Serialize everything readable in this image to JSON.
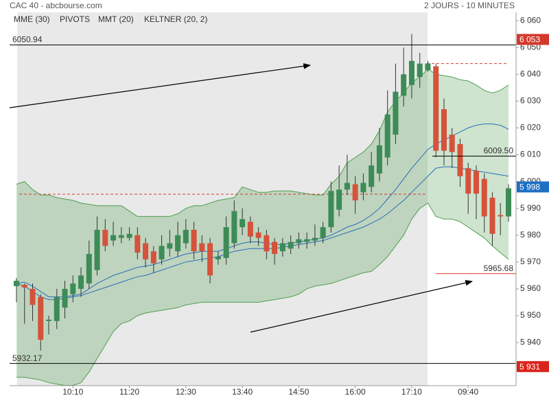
{
  "chart_data": {
    "type": "candlestick",
    "title": "CAC 40 - abcbourse.com",
    "subtitle": "2 JOURS - 10 MINUTES",
    "categories": [
      null,
      null,
      null,
      null,
      null,
      null,
      null,
      "10:10",
      null,
      null,
      null,
      null,
      null,
      null,
      "11:20",
      null,
      null,
      null,
      null,
      null,
      null,
      "12:30",
      null,
      null,
      null,
      null,
      null,
      null,
      "13:40",
      null,
      null,
      null,
      null,
      null,
      null,
      "14:50",
      null,
      null,
      null,
      null,
      null,
      null,
      "16:00",
      null,
      null,
      null,
      null,
      null,
      null,
      "17:10",
      null,
      null,
      null,
      null,
      null,
      null,
      "09:40",
      null,
      null,
      null,
      null,
      null
    ],
    "open": [
      5961,
      5961.5,
      5960,
      5957,
      5948,
      5948,
      5953,
      5958,
      5960,
      5962,
      5967,
      5982,
      5978,
      5979,
      5979,
      5980,
      5977,
      5974,
      5971,
      5975,
      5974,
      5977,
      5982,
      5977,
      5977,
      5971,
      5971.5,
      5977,
      5983,
      5985,
      5981,
      5980,
      5977.5,
      5974,
      5975,
      5977,
      5977.5,
      5978,
      5979,
      5983,
      5989.5,
      5997,
      5999,
      5996,
      5998,
      6003,
      6009,
      6017.5,
      6032,
      6036,
      6039,
      6041.5,
      6043,
      6027,
      6017.5,
      6014,
      6005,
      6004,
      6001,
      5994,
      5987.5,
      5987
    ],
    "high": [
      5964,
      5962,
      5962,
      5958,
      5950,
      5960,
      5963,
      5965,
      5968,
      5978,
      5987,
      5986,
      5985,
      5983,
      5983,
      5983,
      5979,
      5976,
      5980,
      5982,
      5985,
      5986,
      5985,
      5980,
      5979,
      5974,
      5987,
      5993,
      5990,
      5987,
      5983,
      5982,
      5979,
      5979,
      5980,
      5981,
      5981,
      5984,
      5985,
      6000,
      6006,
      6010,
      6002,
      6003,
      6011,
      6020,
      6034,
      6044,
      6050,
      6055,
      6048,
      6045,
      6044,
      6031,
      6020,
      6016,
      6007,
      6006,
      6003,
      5996,
      5992,
      5999
    ],
    "low": [
      5955,
      5947,
      5948,
      5937,
      5943,
      5945,
      5949,
      5955,
      5957,
      5960,
      5965,
      5974,
      5976,
      5977,
      5978,
      5971,
      5968,
      5966,
      5969,
      5972,
      5972,
      5975,
      5971,
      5970,
      5962,
      5969,
      5969,
      5975,
      5980,
      5977,
      5976,
      5971,
      5969,
      5972,
      5973,
      5975,
      5975,
      5976,
      5977,
      5981,
      5987,
      5995,
      5988,
      5993,
      5996,
      6000,
      6006,
      6014,
      6028,
      6031,
      6035,
      6041,
      6009,
      6006,
      6005,
      5998,
      5988,
      5986,
      5981,
      5976,
      5980,
      5985
    ],
    "close": [
      5963,
      5960.5,
      5954,
      5941,
      5948.5,
      5957,
      5960,
      5962,
      5965,
      5973,
      5982,
      5976,
      5980,
      5980,
      5980.5,
      5973.5,
      5971,
      5969.5,
      5976,
      5977,
      5980,
      5982,
      5974,
      5974,
      5965,
      5972,
      5983,
      5989,
      5986,
      5979.5,
      5979,
      5974,
      5973,
      5977,
      5977.5,
      5978.5,
      5978.5,
      5979,
      5983,
      5996.5,
      5997,
      5999.5,
      5993,
      5999.5,
      6006,
      6013.5,
      6025,
      6033.5,
      6040,
      6045,
      6044,
      6044,
      6011.5,
      6011.5,
      6011,
      6002,
      5995.5,
      5995.5,
      5987,
      5980.5,
      5987,
      5997.5
    ],
    "up_color": "#3d8b57",
    "down_color": "#d5523b",
    "series": [
      {
        "name": "MME (30)",
        "color": "#2b6cb8",
        "values": [
          5962,
          5961,
          5959,
          5957,
          5956,
          5956,
          5956.5,
          5957,
          5957.5,
          5958.5,
          5959.5,
          5960.5,
          5961.5,
          5962.5,
          5963.5,
          5964.5,
          5965,
          5966,
          5967,
          5968,
          5969,
          5970,
          5970.5,
          5971,
          5971.5,
          5972,
          5973,
          5974,
          5974.5,
          5975,
          5975,
          5975,
          5975,
          5975.5,
          5976,
          5976.5,
          5977,
          5977.5,
          5978,
          5979,
          5980,
          5981,
          5982,
          5983,
          5984.5,
          5986,
          5988,
          5990.5,
          5993,
          5996,
          5999,
          6002,
          6005,
          6005.5,
          6005.5,
          6005,
          6004.5,
          6004,
          6003.5,
          6003,
          6002.5,
          6002
        ]
      },
      {
        "name": "MMT (20)",
        "color": "#2b6cb8",
        "values": [
          5962,
          5962.5,
          5961,
          5959,
          5957,
          5957,
          5957,
          5957.5,
          5958,
          5960,
          5962,
          5963.5,
          5965,
          5966,
          5967,
          5968,
          5968.5,
          5969,
          5970,
          5971,
          5972,
          5973,
          5973.5,
          5974,
          5974,
          5974,
          5975,
          5976,
          5977,
          5977.5,
          5977.5,
          5977,
          5976.5,
          5976.5,
          5977,
          5977.5,
          5978,
          5978.5,
          5979,
          5980,
          5981.5,
          5983,
          5984,
          5985.5,
          5987.5,
          5990,
          5993.5,
          5997,
          6001,
          6005,
          6008.5,
          6012,
          6014,
          6015.5,
          6017,
          6018.5,
          6020,
          6021,
          6021.5,
          6021.5,
          6021,
          6019.5
        ]
      }
    ],
    "pivots": {
      "name": "PIVOTS",
      "color": "#d33a2c",
      "levels": [
        5995.3,
        6044
      ]
    },
    "keltner": {
      "name": "KELTNER (20, 2)",
      "color": "#4f9e4f",
      "upper": [
        5999,
        6000,
        5997,
        5995,
        5995,
        5994,
        5993.5,
        5993,
        5992,
        5991.5,
        5991,
        5991,
        5991,
        5991,
        5989,
        5987,
        5987,
        5987,
        5987,
        5987,
        5988,
        5990,
        5991,
        5991,
        5992,
        5993,
        5993.5,
        5994,
        5998,
        5997,
        5996,
        5996,
        5996.5,
        5996.5,
        5996.5,
        5996,
        5995.5,
        5995,
        5995,
        5999,
        6002,
        6007,
        6009,
        6011,
        6014,
        6019,
        6026,
        6030,
        6033,
        6037,
        6039,
        6042,
        6040,
        6039.5,
        6039,
        6038,
        6037.5,
        6036,
        6034,
        6033,
        6034,
        6036
      ],
      "lower": [
        5927,
        5927,
        5926.5,
        5926,
        5925,
        5924.5,
        5924,
        5924,
        5925,
        5929,
        5934,
        5939,
        5944,
        5947,
        5948,
        5950,
        5951,
        5951.5,
        5952,
        5952.5,
        5953,
        5954,
        5954.5,
        5955,
        5955,
        5955,
        5955,
        5955,
        5955,
        5955,
        5955,
        5955.5,
        5956,
        5956.5,
        5957,
        5958,
        5960,
        5961,
        5961.5,
        5962,
        5963,
        5964,
        5965,
        5966,
        5966.5,
        5969,
        5972,
        5976,
        5980,
        5986,
        5990,
        5992,
        5987,
        5986,
        5986,
        5985,
        5983,
        5981,
        5979,
        5976,
        5973.5,
        5971
      ]
    },
    "levels": [
      {
        "value": 6050.94,
        "color": "#000000"
      },
      {
        "value": 5932.17,
        "color": "#000000"
      },
      {
        "value": 6009.5,
        "label": "6009.50",
        "color": "#000000"
      },
      {
        "value": 5965.68,
        "color": "#d33a2c"
      }
    ],
    "price_tags": [
      {
        "value": 6053,
        "label": "6 053",
        "color": "#d33a2c"
      },
      {
        "value": 5998,
        "label": "5 998",
        "color": "#1f6fc4"
      },
      {
        "value": 5931,
        "label": "5 931",
        "color": "#d9241b"
      }
    ],
    "ylim": [
      5923.9,
      6063.1
    ],
    "yticks": [
      {
        "value": 5940,
        "label": "5 940"
      },
      {
        "value": 5950,
        "label": "5 950"
      },
      {
        "value": 5960,
        "label": "5 960"
      },
      {
        "value": 5970,
        "label": "5 970"
      },
      {
        "value": 5980,
        "label": "5 980"
      },
      {
        "value": 5990,
        "label": "5 990"
      },
      {
        "value": 6000,
        "label": "6 000"
      },
      {
        "value": 6010,
        "label": "6 010"
      },
      {
        "value": 6020,
        "label": "6 020"
      },
      {
        "value": 6030,
        "label": "6 030"
      },
      {
        "value": 6040,
        "label": "6 040"
      },
      {
        "value": 6050,
        "label": "6 050"
      },
      {
        "value": 6060,
        "label": "6 060"
      }
    ],
    "grid": false
  }
}
